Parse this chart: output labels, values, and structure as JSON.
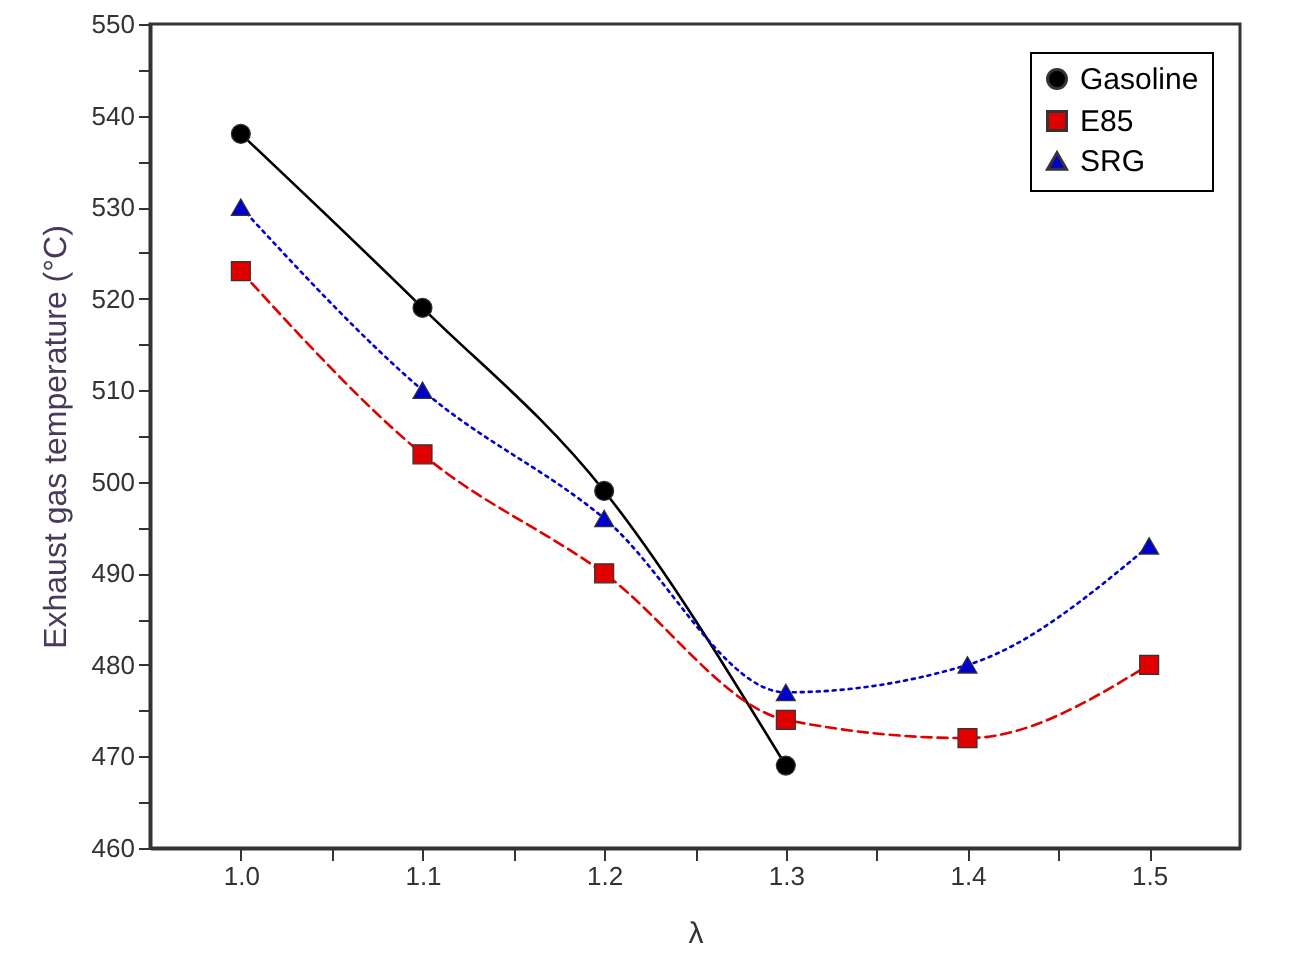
{
  "chart_data": {
    "type": "line",
    "xlabel": "λ",
    "ylabel": "Exhaust gas temperature (°C)",
    "xlim": [
      0.95,
      1.55
    ],
    "xticks": [
      {
        "value": 1.0,
        "label": "1.0"
      },
      {
        "value": 1.05,
        "label": null
      },
      {
        "value": 1.1,
        "label": "1.1"
      },
      {
        "value": 1.15,
        "label": null
      },
      {
        "value": 1.2,
        "label": "1.2"
      },
      {
        "value": 1.25,
        "label": null
      },
      {
        "value": 1.3,
        "label": "1.3"
      },
      {
        "value": 1.35,
        "label": null
      },
      {
        "value": 1.4,
        "label": "1.4"
      },
      {
        "value": 1.45,
        "label": null
      },
      {
        "value": 1.5,
        "label": "1.5"
      }
    ],
    "ylim": [
      460,
      550
    ],
    "yticks": [
      460,
      {
        "value": 465,
        "label": null
      },
      470,
      {
        "value": 475,
        "label": null
      },
      480,
      {
        "value": 485,
        "label": null
      },
      490,
      {
        "value": 495,
        "label": null
      },
      500,
      {
        "value": 505,
        "label": null
      },
      510,
      {
        "value": 515,
        "label": null
      },
      520,
      {
        "value": 525,
        "label": null
      },
      530,
      {
        "value": 535,
        "label": null
      },
      540,
      {
        "value": 545,
        "label": null
      },
      550
    ],
    "legend": "top right",
    "grid": false,
    "series": [
      {
        "name": "Gasoline",
        "color": "#000000",
        "marker": "circle",
        "line_style": "solid",
        "x": [
          1.0,
          1.1,
          1.2,
          1.3
        ],
        "values": [
          538,
          519,
          499,
          469
        ]
      },
      {
        "name": "E85",
        "color": "#e00000",
        "marker": "square",
        "line_style": "dashed",
        "x": [
          1.0,
          1.1,
          1.2,
          1.3,
          1.4,
          1.5
        ],
        "values": [
          523,
          503,
          490,
          474,
          472,
          480
        ]
      },
      {
        "name": "SRG",
        "color": "#0000cc",
        "marker": "triangle",
        "line_style": "dotted",
        "x": [
          1.0,
          1.1,
          1.2,
          1.3,
          1.4,
          1.5
        ],
        "values": [
          530,
          510,
          496,
          477,
          480,
          493
        ]
      }
    ]
  }
}
